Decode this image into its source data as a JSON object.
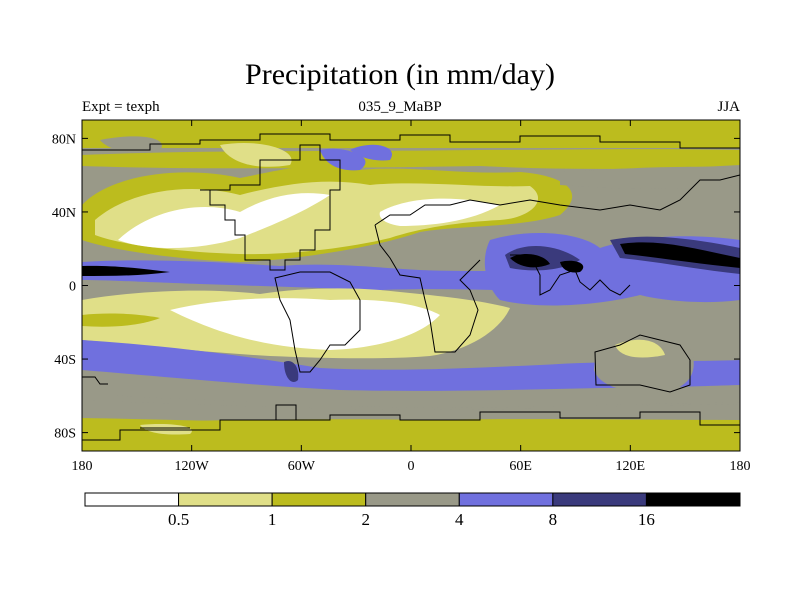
{
  "title": "Precipitation (in mm/day)",
  "subtitles": {
    "left": "Expt = texph",
    "center": "035_9_MaBP",
    "right": "JJA"
  },
  "map": {
    "lon_range": [
      -180,
      180
    ],
    "lat_range": [
      -90,
      90
    ],
    "lon_ticks": [
      {
        "value": -180,
        "label": "180"
      },
      {
        "value": -120,
        "label": "120W"
      },
      {
        "value": -60,
        "label": "60W"
      },
      {
        "value": 0,
        "label": "0"
      },
      {
        "value": 60,
        "label": "60E"
      },
      {
        "value": 120,
        "label": "120E"
      },
      {
        "value": 180,
        "label": "180"
      }
    ],
    "lat_ticks": [
      {
        "value": 80,
        "label": "80N"
      },
      {
        "value": 40,
        "label": "40N"
      },
      {
        "value": 0,
        "label": "0"
      },
      {
        "value": -40,
        "label": "40S"
      },
      {
        "value": -80,
        "label": "80S"
      }
    ]
  },
  "colorbar": {
    "labels": [
      "0.5",
      "1",
      "2",
      "4",
      "8",
      "16"
    ],
    "colors": [
      "#ffffff",
      "#e0df88",
      "#bcbc1e",
      "#999988",
      "#7070de",
      "#3a3a7c",
      "#000000"
    ]
  }
}
